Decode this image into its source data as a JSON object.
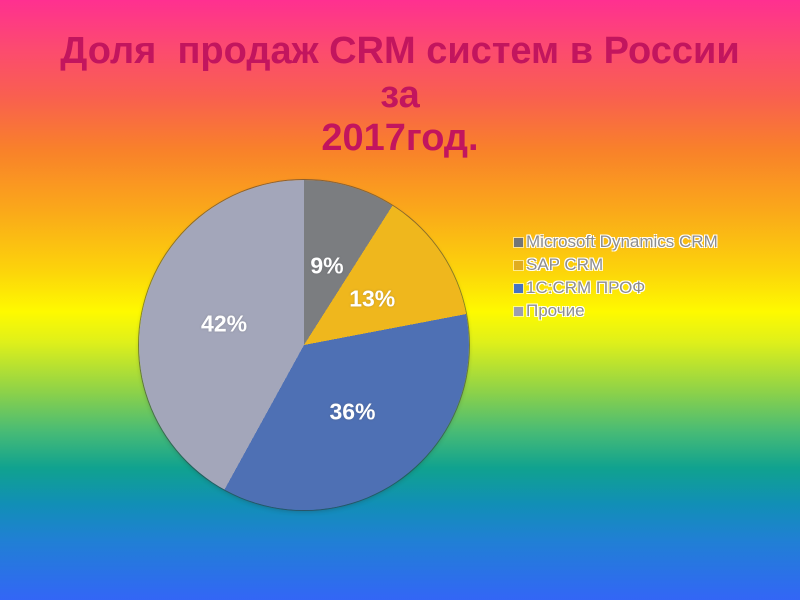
{
  "slide": {
    "title": "Доля  продаж CRM систем в России за 2017год.",
    "title_lines": [
      "Доля  продаж CRM систем в России за",
      "2017год."
    ]
  },
  "chart_data": {
    "type": "pie",
    "title": "Доля  продаж CRM систем в России за 2017год.",
    "labels": [
      "Microsoft Dynamics CRM",
      "SAP CRM",
      "1C:CRM ПРОФ",
      "Прочие"
    ],
    "values": [
      9,
      13,
      36,
      42
    ],
    "unit": "%",
    "data_labels": [
      "9%",
      "13%",
      "36%",
      "42%"
    ],
    "slice_colors": [
      "#7B7D80",
      "#EFB71D",
      "#4E70B4",
      "#A3A6BA"
    ],
    "start_angle_deg": 0,
    "direction": "clockwise",
    "legend_position": "right",
    "label_radius_ratio": 0.5
  },
  "legend": {
    "items": [
      {
        "label": "Microsoft Dynamics CRM",
        "color": "#737577"
      },
      {
        "label": "SAP CRM",
        "color": "#E0AC1F"
      },
      {
        "label": "1C:CRM ПРОФ",
        "color": "#4472C4"
      },
      {
        "label": "Прочие",
        "color": "#9B9EB0"
      }
    ],
    "text_color": "#8E8E8E"
  },
  "colors": {
    "title_text": "#C2155E",
    "pie_label_text": "#FFFFFF",
    "background_gradient_stops": [
      "#FF3090",
      "#FC4A70",
      "#F95F50",
      "#F9812A",
      "#FAA81A",
      "#FCD30B",
      "#FEFA00",
      "#DFF01A",
      "#90D347",
      "#47BB76",
      "#10A28F",
      "#118FB6",
      "#2080D4",
      "#3366F6"
    ]
  }
}
